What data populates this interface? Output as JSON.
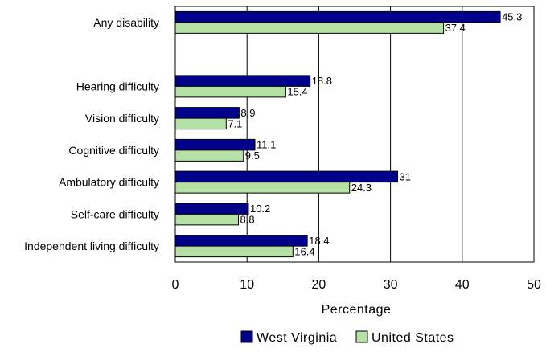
{
  "chart_data": {
    "type": "bar",
    "orientation": "horizontal",
    "title": "",
    "xlabel": "Percentage",
    "ylabel": "",
    "xlim": [
      0,
      50
    ],
    "xticks": [
      0,
      10,
      20,
      30,
      40,
      50
    ],
    "grid": true,
    "legend_position": "bottom",
    "categories": [
      "Any disability",
      "",
      "Hearing difficulty",
      "Vision difficulty",
      "Cognitive difficulty",
      "Ambulatory difficulty",
      "Self-care difficulty",
      "Independent living difficulty"
    ],
    "series": [
      {
        "name": "West Virginia",
        "color": "#00008b",
        "values": [
          45.3,
          null,
          18.8,
          8.9,
          11.1,
          31,
          10.2,
          18.4
        ]
      },
      {
        "name": "United States",
        "color": "#b5e0a6",
        "values": [
          37.4,
          null,
          15.4,
          7.1,
          9.5,
          24.3,
          8.8,
          16.4
        ]
      }
    ]
  }
}
